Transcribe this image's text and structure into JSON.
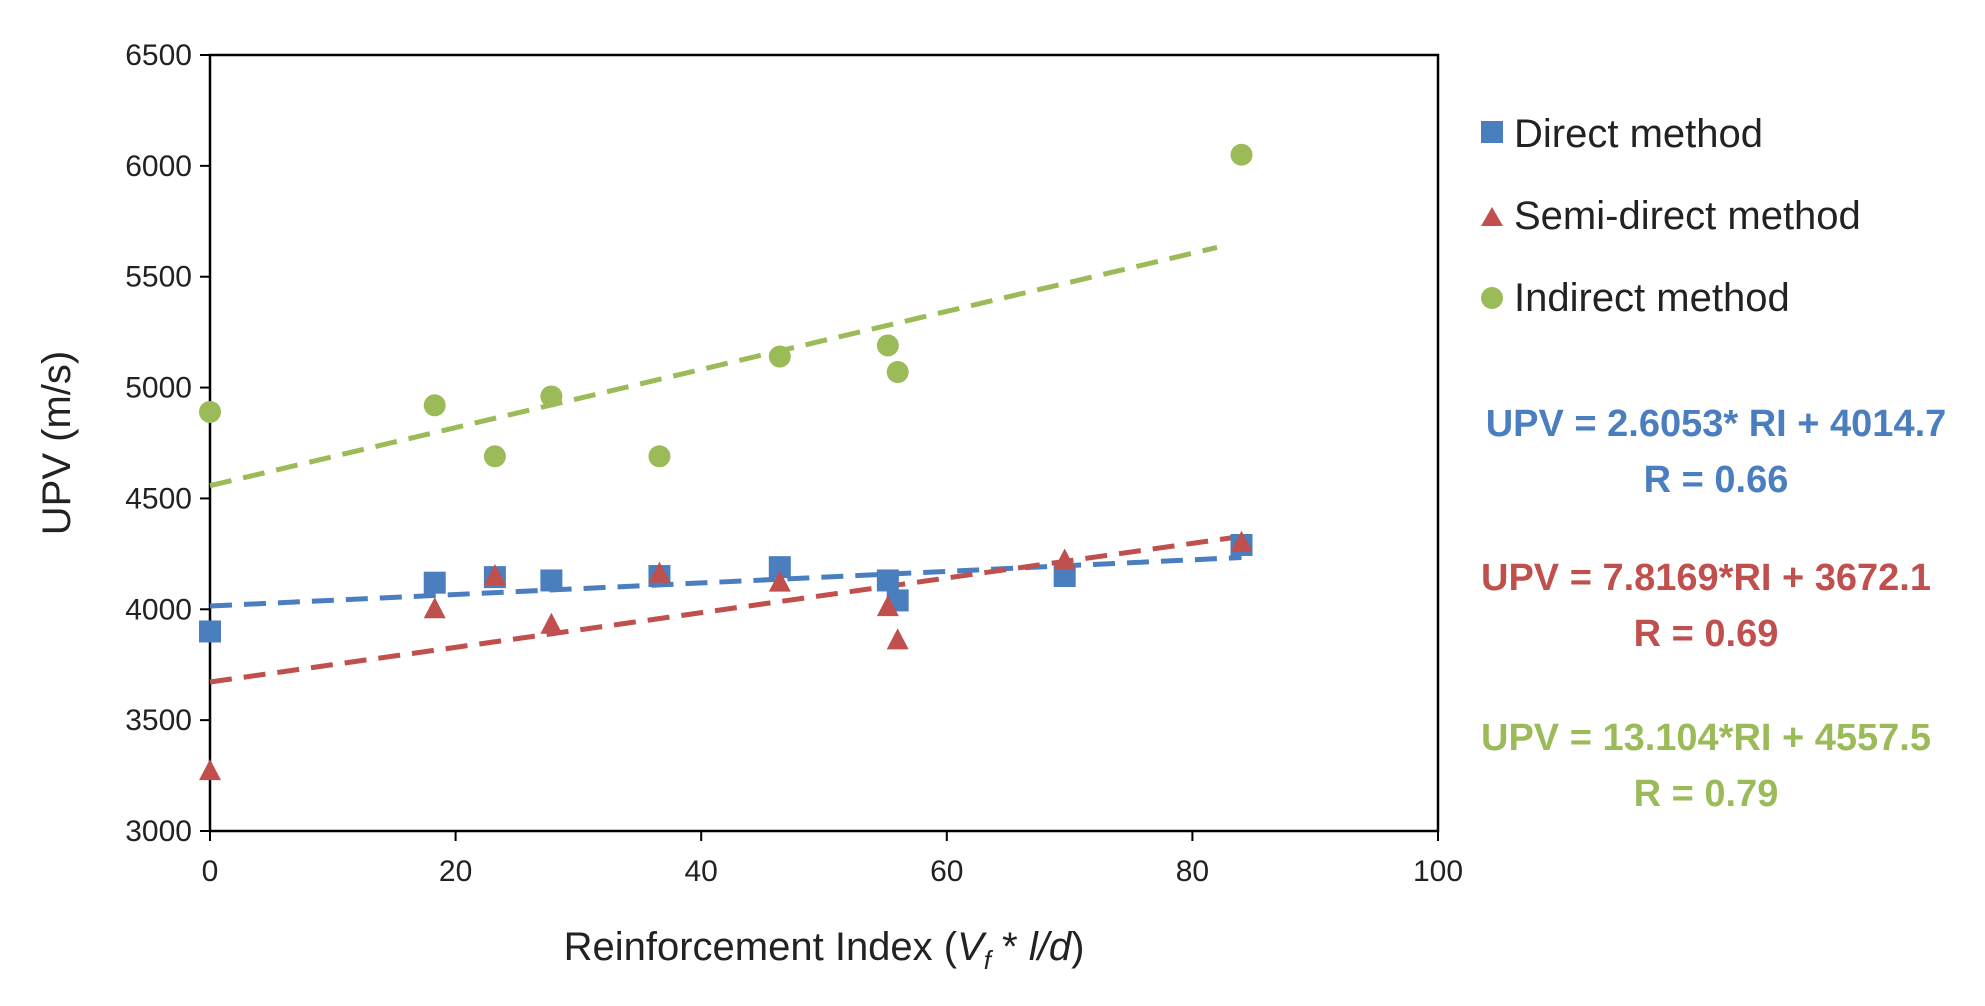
{
  "chart_data": {
    "type": "scatter",
    "xlabel_prefix": "Reinforcement Index (",
    "xlabel_vf": "V",
    "xlabel_sub": "f",
    "xlabel_mid": " * ",
    "xlabel_ld": "l/d",
    "xlabel_suffix": ")",
    "ylabel": "UPV (m/s)",
    "xlim": [
      0,
      100
    ],
    "ylim": [
      3000,
      6500
    ],
    "xticks": [
      0,
      20,
      40,
      60,
      80,
      100
    ],
    "yticks": [
      3000,
      3500,
      4000,
      4500,
      5000,
      5500,
      6000,
      6500
    ],
    "grid": false,
    "legend_position": "right",
    "series": [
      {
        "name": "Direct method",
        "marker": "square",
        "color": "#4a7ebf",
        "x": [
          0,
          18.3,
          23.2,
          27.8,
          36.6,
          46.4,
          55.2,
          56.0,
          69.6,
          84.0
        ],
        "y": [
          3900,
          4120,
          4145,
          4130,
          4150,
          4190,
          4130,
          4040,
          4150,
          4290
        ],
        "trend": {
          "slope": 2.6053,
          "intercept": 4014.7,
          "x_range": [
            0,
            84
          ]
        },
        "equation": "UPV = 2.6053* RI + 4014.7",
        "r_label": "R = 0.66"
      },
      {
        "name": "Semi-direct method",
        "marker": "triangle",
        "color": "#c0504d",
        "x": [
          0,
          18.3,
          23.2,
          27.8,
          36.6,
          46.4,
          55.2,
          56.0,
          69.6,
          84.0
        ],
        "y": [
          3270,
          4000,
          4150,
          3930,
          4160,
          4120,
          4010,
          3860,
          4220,
          4300
        ],
        "trend": {
          "slope": 7.8169,
          "intercept": 3672.1,
          "x_range": [
            0,
            84
          ]
        },
        "equation": "UPV = 7.8169*RI + 3672.1",
        "r_label": "R = 0.69"
      },
      {
        "name": "Indirect method",
        "marker": "circle",
        "color": "#9bbb59",
        "x": [
          0,
          18.3,
          23.2,
          27.8,
          36.6,
          46.4,
          55.2,
          56.0,
          84.0
        ],
        "y": [
          4890,
          4920,
          4690,
          4960,
          4690,
          5140,
          5190,
          5070,
          6050
        ],
        "trend": {
          "slope": 13.104,
          "intercept": 4557.5,
          "x_range": [
            0,
            82
          ]
        },
        "equation": "UPV = 13.104*RI + 4557.5",
        "r_label": "R = 0.79"
      }
    ]
  }
}
